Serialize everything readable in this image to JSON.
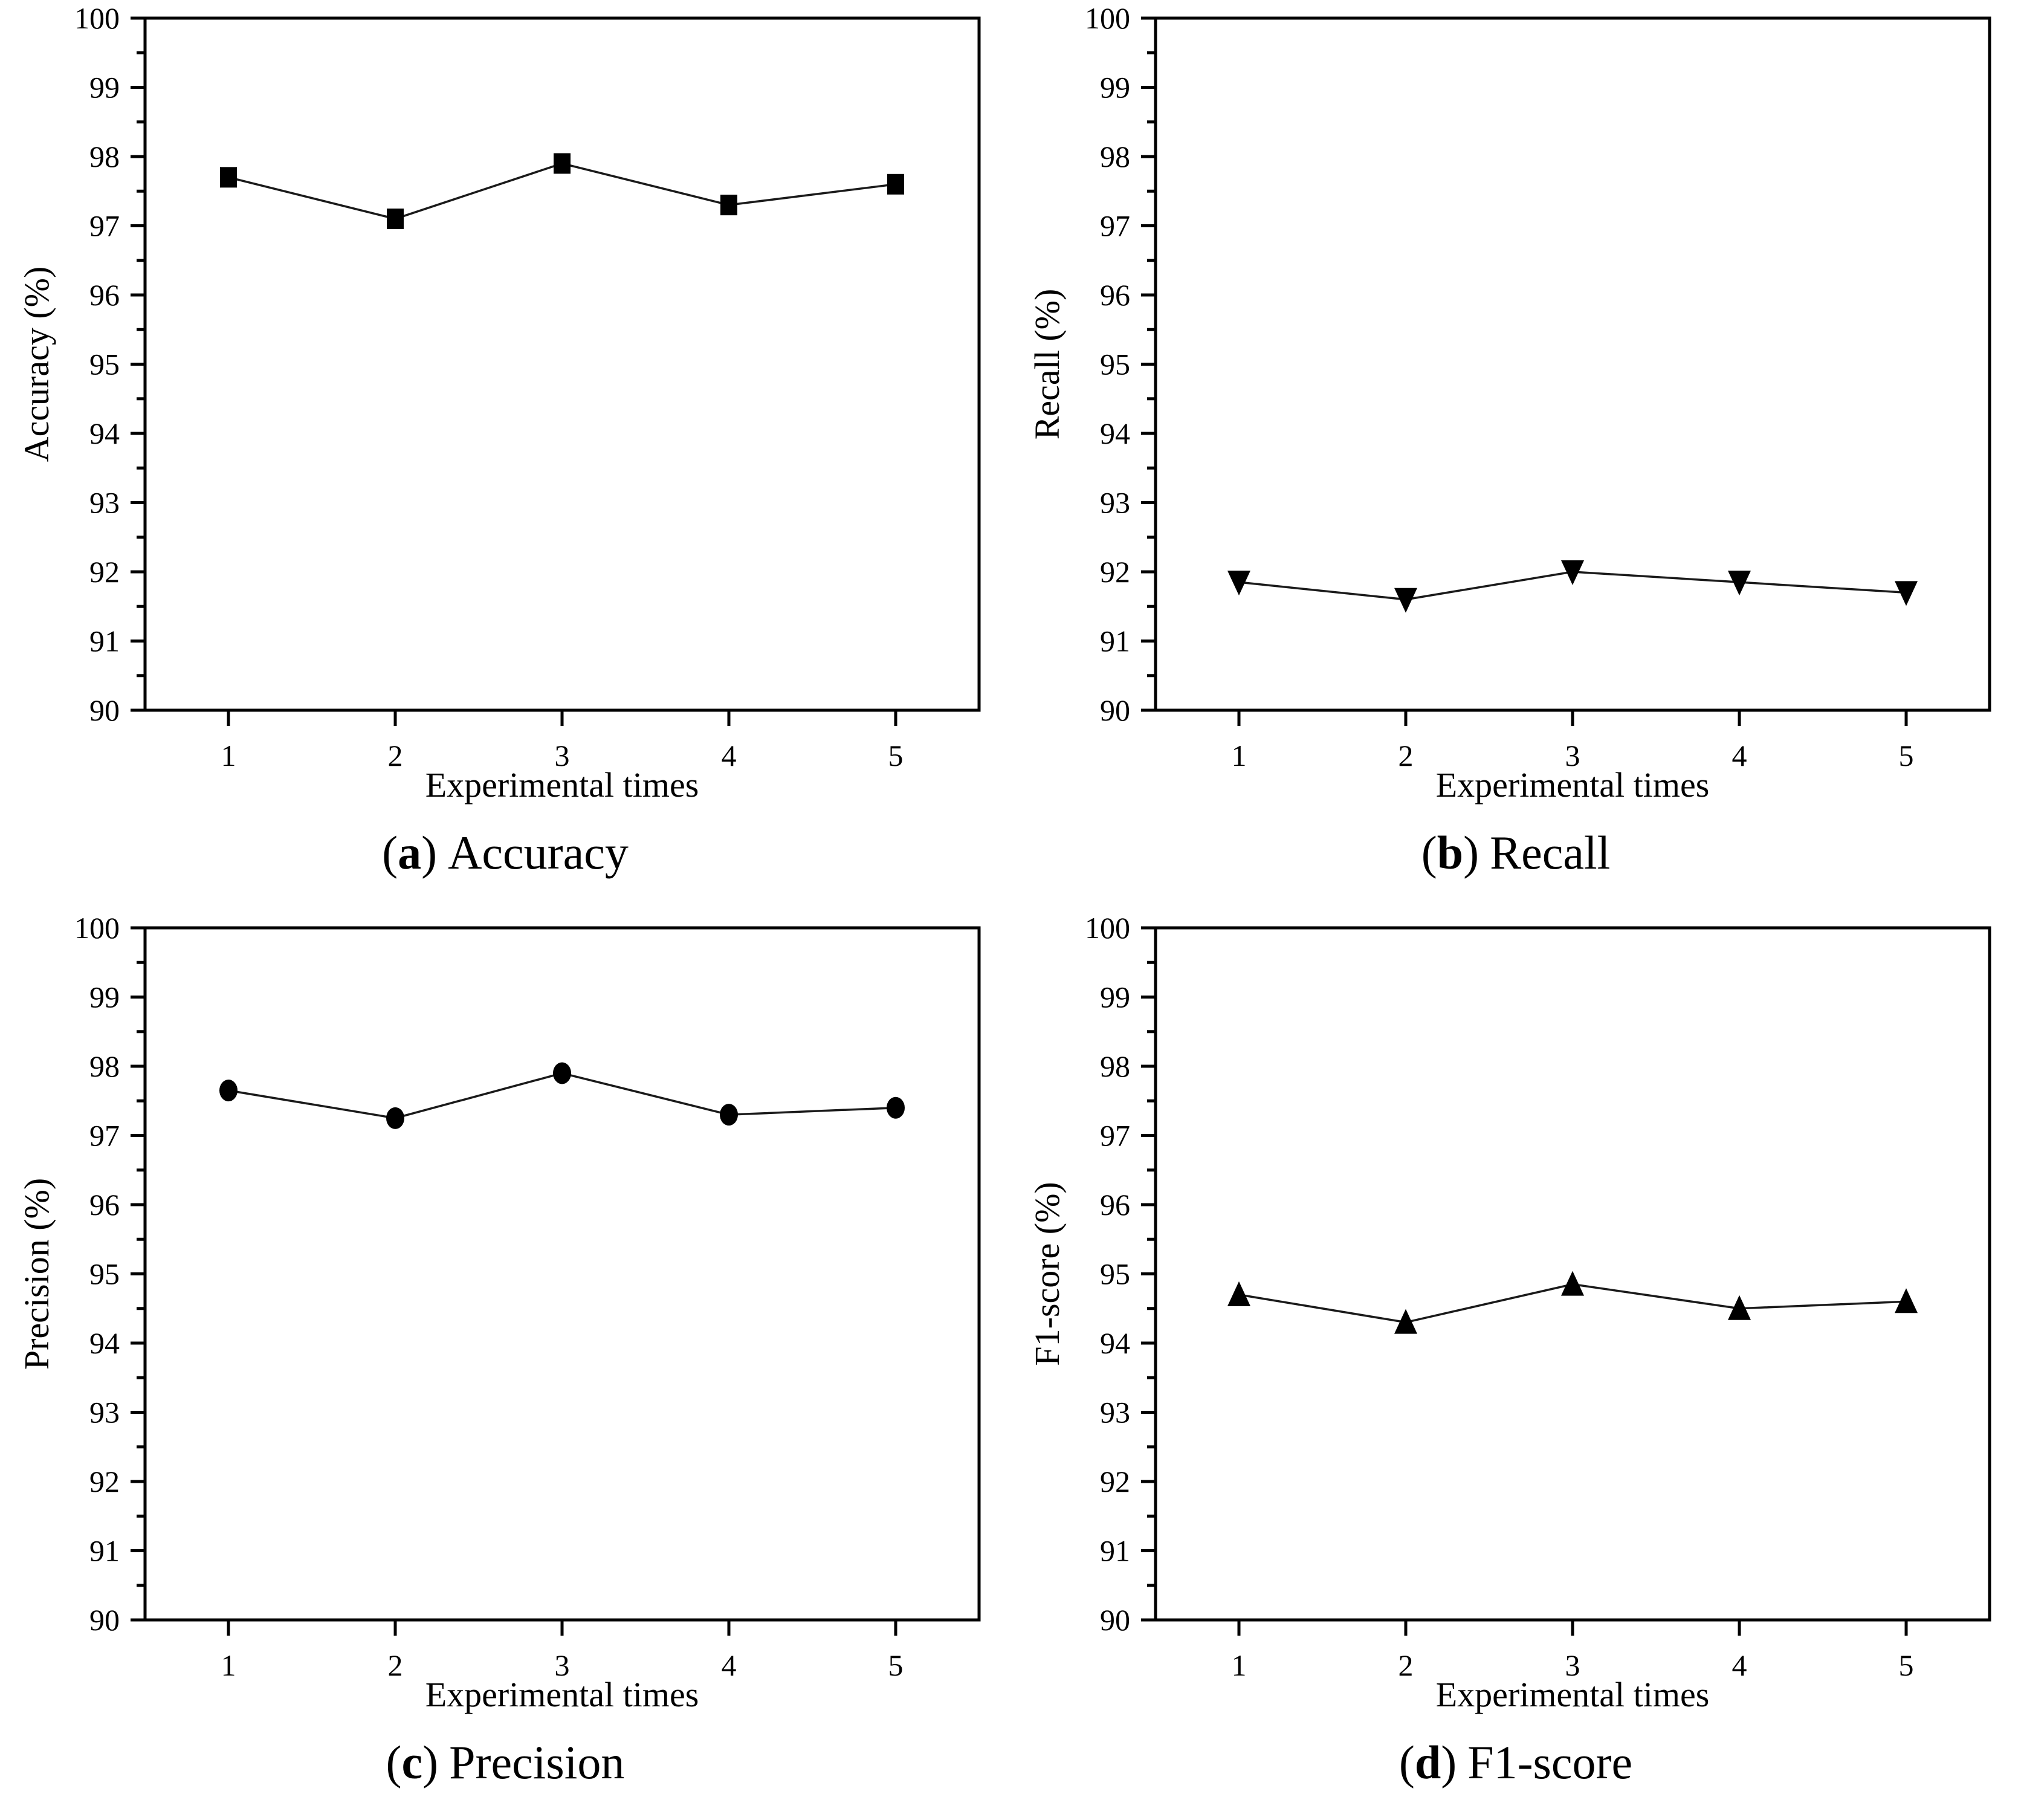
{
  "figure": {
    "background": "#ffffff",
    "axis_color": "#000000",
    "line_color": "#1a1a1a",
    "marker_color": "#000000",
    "caption_open": "(",
    "caption_close": ")"
  },
  "chart_data": [
    {
      "type": "line",
      "panel": "a",
      "caption_letter": "a",
      "caption_text": "Accuracy",
      "marker": "square",
      "x": [
        1,
        2,
        3,
        4,
        5
      ],
      "y": [
        97.7,
        97.1,
        97.9,
        97.3,
        97.6
      ],
      "xlabel": "Experimental times",
      "ylabel": "Accuracy (%)",
      "xlim": [
        0.5,
        5.5
      ],
      "ylim": [
        90,
        100
      ],
      "ytick_major_step": 1,
      "ytick_minor_step": 0.5,
      "xticks": [
        1,
        2,
        3,
        4,
        5
      ],
      "grid": false,
      "legend": "none"
    },
    {
      "type": "line",
      "panel": "b",
      "caption_letter": "b",
      "caption_text": "Recall",
      "marker": "triangle-down",
      "x": [
        1,
        2,
        3,
        4,
        5
      ],
      "y": [
        91.85,
        91.6,
        92.0,
        91.85,
        91.7
      ],
      "xlabel": "Experimental times",
      "ylabel": "Recall (%)",
      "xlim": [
        0.5,
        5.5
      ],
      "ylim": [
        90,
        100
      ],
      "ytick_major_step": 1,
      "ytick_minor_step": 0.5,
      "xticks": [
        1,
        2,
        3,
        4,
        5
      ],
      "grid": false,
      "legend": "none"
    },
    {
      "type": "line",
      "panel": "c",
      "caption_letter": "c",
      "caption_text": "Precision",
      "marker": "circle",
      "x": [
        1,
        2,
        3,
        4,
        5
      ],
      "y": [
        97.65,
        97.25,
        97.9,
        97.3,
        97.4
      ],
      "xlabel": "Experimental times",
      "ylabel": "Precision (%)",
      "xlim": [
        0.5,
        5.5
      ],
      "ylim": [
        90,
        100
      ],
      "ytick_major_step": 1,
      "ytick_minor_step": 0.5,
      "xticks": [
        1,
        2,
        3,
        4,
        5
      ],
      "grid": false,
      "legend": "none"
    },
    {
      "type": "line",
      "panel": "d",
      "caption_letter": "d",
      "caption_text": "F1-score",
      "marker": "triangle-up",
      "x": [
        1,
        2,
        3,
        4,
        5
      ],
      "y": [
        94.7,
        94.3,
        94.85,
        94.5,
        94.6
      ],
      "xlabel": "Experimental times",
      "ylabel": "F1-score (%)",
      "xlim": [
        0.5,
        5.5
      ],
      "ylim": [
        90,
        100
      ],
      "ytick_major_step": 1,
      "ytick_minor_step": 0.5,
      "xticks": [
        1,
        2,
        3,
        4,
        5
      ],
      "grid": false,
      "legend": "none"
    }
  ]
}
